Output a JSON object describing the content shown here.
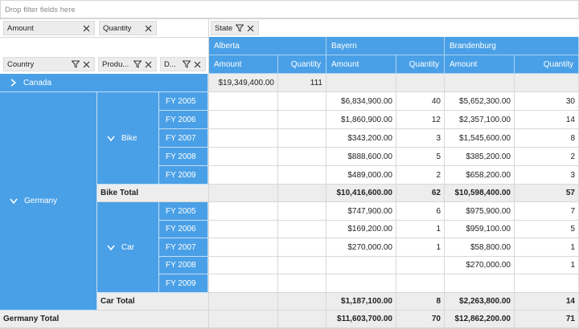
{
  "filter_area": {
    "placeholder": "Drop filter fields here"
  },
  "value_chips": [
    {
      "label": "Amount"
    },
    {
      "label": "Quantity"
    }
  ],
  "column_chip": {
    "label": "State"
  },
  "row_chips": [
    {
      "label": "Country"
    },
    {
      "label": "Produ..."
    },
    {
      "label": "D..."
    }
  ],
  "columns": {
    "states": [
      "Alberta",
      "Bayern",
      "Brandenburg"
    ],
    "measures": [
      "Amount",
      "Quantity"
    ]
  },
  "rows": {
    "canada": {
      "label": "Canada",
      "values": [
        "$19,349,400.00",
        "111",
        "",
        "",
        "",
        ""
      ]
    },
    "germany": {
      "label": "Germany"
    },
    "bike": {
      "label": "Bike"
    },
    "car": {
      "label": "Car"
    },
    "bike_years": [
      {
        "label": "FY 2005",
        "values": [
          "",
          "",
          "$6,834,900.00",
          "40",
          "$5,652,300.00",
          "30"
        ]
      },
      {
        "label": "FY 2006",
        "values": [
          "",
          "",
          "$1,860,900.00",
          "12",
          "$2,357,100.00",
          "14"
        ]
      },
      {
        "label": "FY 2007",
        "values": [
          "",
          "",
          "$343,200.00",
          "3",
          "$1,545,600.00",
          "8"
        ]
      },
      {
        "label": "FY 2008",
        "values": [
          "",
          "",
          "$888,600.00",
          "5",
          "$385,200.00",
          "2"
        ]
      },
      {
        "label": "FY 2009",
        "values": [
          "",
          "",
          "$489,000.00",
          "2",
          "$658,200.00",
          "3"
        ]
      }
    ],
    "bike_total": {
      "label": "Bike Total",
      "values": [
        "",
        "",
        "$10,416,600.00",
        "62",
        "$10,598,400.00",
        "57"
      ]
    },
    "car_years": [
      {
        "label": "FY 2005",
        "values": [
          "",
          "",
          "$747,900.00",
          "6",
          "$975,900.00",
          "7"
        ]
      },
      {
        "label": "FY 2006",
        "values": [
          "",
          "",
          "$169,200.00",
          "1",
          "$959,100.00",
          "5"
        ]
      },
      {
        "label": "FY 2007",
        "values": [
          "",
          "",
          "$270,000.00",
          "1",
          "$58,800.00",
          "1"
        ]
      },
      {
        "label": "FY 2008",
        "values": [
          "",
          "",
          "",
          "",
          "$270,000.00",
          "1"
        ]
      },
      {
        "label": "FY 2009",
        "values": [
          "",
          "",
          "",
          "",
          "",
          ""
        ]
      }
    ],
    "car_total": {
      "label": "Car Total",
      "values": [
        "",
        "",
        "$1,187,100.00",
        "8",
        "$2,263,800.00",
        "14"
      ]
    },
    "germany_total": {
      "label": "Germany Total",
      "values": [
        "",
        "",
        "$11,603,700.00",
        "70",
        "$12,862,200.00",
        "71"
      ]
    }
  },
  "icons": {
    "expand": "chevron-right-icon",
    "collapse": "chevron-down-icon",
    "filter": "filter-icon",
    "remove": "close-icon"
  },
  "colors": {
    "header_blue": "#4aa0e6",
    "total_gray": "#ededed"
  }
}
